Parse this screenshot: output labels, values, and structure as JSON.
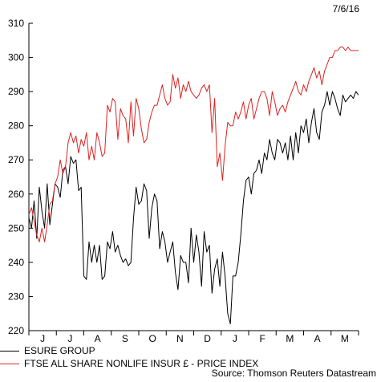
{
  "date_label": "7/6/16",
  "source": "Source: Thomson Reuters Datastream",
  "chart_data": {
    "type": "line",
    "ylim": [
      220,
      310
    ],
    "yticks": [
      220,
      230,
      240,
      250,
      260,
      270,
      280,
      290,
      300,
      310
    ],
    "month_labels": [
      "J",
      "J",
      "A",
      "S",
      "O",
      "N",
      "D",
      "J",
      "F",
      "M",
      "A",
      "M"
    ],
    "grid": false,
    "legend_position": "bottom-left",
    "series": [
      {
        "name": "ESURE GROUP",
        "color": "#000000",
        "x": [
          0,
          3,
          6,
          9,
          12,
          15,
          18,
          21,
          24,
          27,
          30,
          33,
          36,
          39,
          42,
          45,
          48,
          51,
          54,
          57,
          60,
          63,
          66,
          69,
          72,
          75,
          78,
          81,
          84,
          87,
          90,
          93,
          96,
          99,
          102,
          105,
          108,
          111,
          114,
          117,
          120,
          123,
          126,
          129,
          132,
          135,
          138,
          141,
          144,
          147,
          150,
          153,
          156,
          159,
          162,
          165,
          168,
          171,
          174,
          177,
          180,
          183,
          186,
          189,
          192,
          195,
          198,
          201,
          204,
          207,
          210,
          213,
          216,
          219,
          222,
          225,
          228,
          231,
          234,
          237,
          240,
          243,
          246,
          249,
          252,
          255,
          258,
          261,
          264,
          267,
          270,
          273,
          276,
          279,
          282,
          285,
          288,
          291,
          294,
          297,
          300,
          303,
          306,
          309,
          312,
          315,
          318,
          321,
          324,
          327,
          330,
          333,
          336,
          339,
          342,
          345,
          348,
          351,
          354,
          357,
          360,
          363,
          366,
          369,
          372,
          375,
          378
        ],
        "values": [
          253,
          250,
          258,
          247,
          262,
          255,
          250,
          263,
          251,
          257,
          263,
          262,
          259,
          267,
          268,
          263,
          271,
          269,
          270,
          261,
          262,
          236,
          235,
          246,
          240,
          245,
          240,
          245,
          235,
          236,
          246,
          244,
          249,
          243,
          245,
          242,
          240,
          241,
          239,
          240,
          253,
          262,
          257,
          258,
          263,
          261,
          247,
          256,
          260,
          258,
          244,
          249,
          246,
          240,
          243,
          246,
          237,
          232,
          242,
          240,
          240,
          234,
          250,
          240,
          248,
          243,
          233,
          249,
          243,
          245,
          231,
          238,
          241,
          233,
          243,
          236,
          225,
          222,
          236,
          236,
          240,
          248,
          258,
          264,
          265,
          260,
          266,
          267,
          270,
          266,
          272,
          270,
          276,
          272,
          270,
          276,
          275,
          272,
          275,
          270,
          277,
          270,
          278,
          272,
          280,
          278,
          282,
          275,
          281,
          285,
          278,
          276,
          284,
          286,
          290,
          286,
          290,
          288,
          285,
          283,
          289,
          287,
          288,
          289,
          288,
          290,
          289
        ]
      },
      {
        "name": "FTSE ALL SHARE NONLIFE INSUR £ - PRICE INDEX",
        "color": "#dd2222",
        "x": [
          0,
          3,
          6,
          9,
          12,
          15,
          18,
          21,
          24,
          27,
          30,
          33,
          36,
          39,
          42,
          45,
          48,
          51,
          54,
          57,
          60,
          63,
          66,
          69,
          72,
          75,
          78,
          81,
          84,
          87,
          90,
          93,
          96,
          99,
          102,
          105,
          108,
          111,
          114,
          117,
          120,
          123,
          126,
          129,
          132,
          135,
          138,
          141,
          144,
          147,
          150,
          153,
          156,
          159,
          162,
          165,
          168,
          171,
          174,
          177,
          180,
          183,
          186,
          189,
          192,
          195,
          198,
          201,
          204,
          207,
          210,
          213,
          216,
          219,
          222,
          225,
          228,
          231,
          234,
          237,
          240,
          243,
          246,
          249,
          252,
          255,
          258,
          261,
          264,
          267,
          270,
          273,
          276,
          279,
          282,
          285,
          288,
          291,
          294,
          297,
          300,
          303,
          306,
          309,
          312,
          315,
          318,
          321,
          324,
          327,
          330,
          333,
          336,
          339,
          342,
          345,
          348,
          351,
          354,
          357,
          360,
          363,
          366,
          369,
          372,
          375,
          378
        ],
        "values": [
          254,
          256,
          252,
          248,
          246,
          250,
          246,
          251,
          257,
          258,
          263,
          265,
          270,
          266,
          268,
          275,
          278,
          275,
          277,
          272,
          276,
          274,
          278,
          270,
          274,
          270,
          278,
          275,
          271,
          272,
          286,
          284,
          288,
          287,
          276,
          285,
          283,
          282,
          275,
          287,
          277,
          288,
          285,
          279,
          275,
          276,
          281,
          284,
          286,
          286,
          289,
          292,
          288,
          286,
          287,
          295,
          291,
          294,
          288,
          292,
          290,
          293,
          290,
          289,
          288,
          289,
          291,
          292,
          290,
          292,
          278,
          288,
          268,
          272,
          264,
          274,
          281,
          280,
          280,
          284,
          282,
          284,
          287,
          282,
          286,
          288,
          282,
          285,
          288,
          290,
          290,
          288,
          283,
          290,
          287,
          283,
          285,
          286,
          284,
          287,
          289,
          291,
          293,
          290,
          289,
          292,
          290,
          293,
          295,
          297,
          294,
          296,
          292,
          296,
          298,
          300,
          300,
          302,
          302,
          303,
          303,
          302,
          303,
          302,
          302,
          302,
          302
        ]
      }
    ]
  }
}
